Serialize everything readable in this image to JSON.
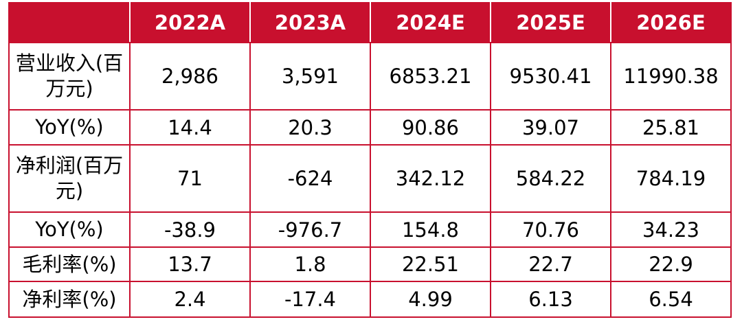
{
  "header": {
    "corner": "",
    "years": [
      "2022A",
      "2023A",
      "2024E",
      "2025E",
      "2026E"
    ]
  },
  "rows": [
    {
      "label": "营业收入(百万元)",
      "values": [
        "2,986",
        "3,591",
        "6853.21",
        "9530.41",
        "11990.38"
      ]
    },
    {
      "label": "YoY(%)",
      "values": [
        "14.4",
        "20.3",
        "90.86",
        "39.07",
        "25.81"
      ]
    },
    {
      "label": "净利润(百万元)",
      "values": [
        "71",
        "-624",
        "342.12",
        "584.22",
        "784.19"
      ]
    },
    {
      "label": "YoY(%)",
      "values": [
        "-38.9",
        "-976.7",
        "154.8",
        "70.76",
        "34.23"
      ]
    },
    {
      "label": "毛利率(%)",
      "values": [
        "13.7",
        "1.8",
        "22.51",
        "22.7",
        "22.9"
      ]
    },
    {
      "label": "净利率(%)",
      "values": [
        "2.4",
        "-17.4",
        "4.99",
        "6.13",
        "6.54"
      ]
    }
  ],
  "colors": {
    "accent": "#c8102e",
    "header_text": "#ffffff",
    "body_text": "#000000"
  }
}
